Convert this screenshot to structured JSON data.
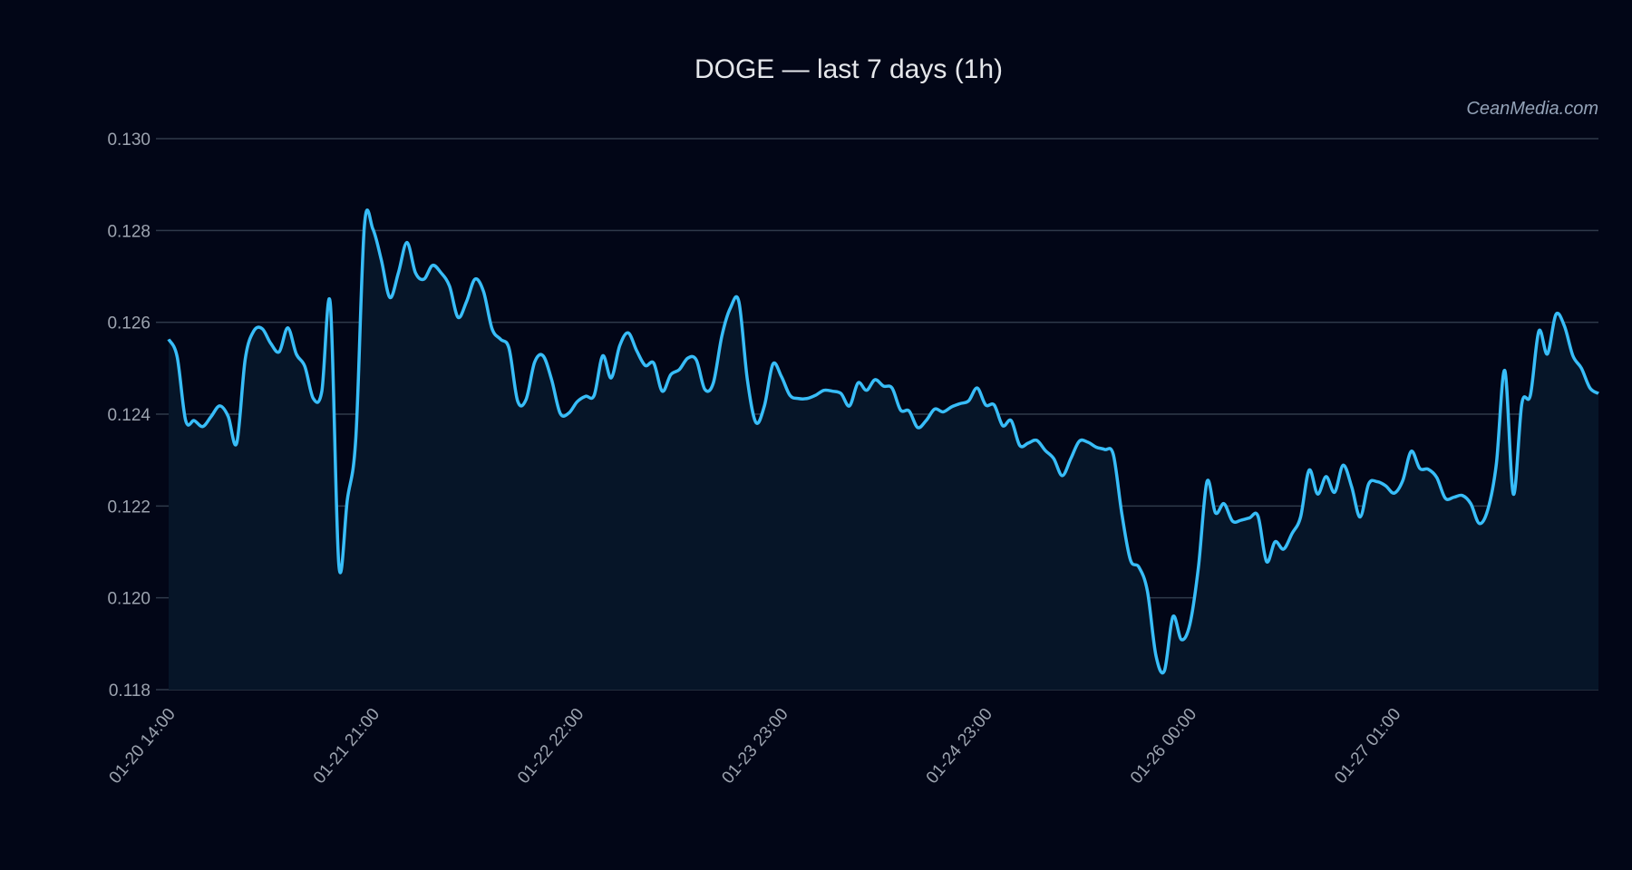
{
  "chart_data": {
    "type": "line",
    "title": "DOGE — last 7 days (1h)",
    "watermark": "CeanMedia.com",
    "xlabel": "",
    "ylabel": "",
    "ylim": [
      0.118,
      0.13
    ],
    "yticks": [
      "0.118",
      "0.120",
      "0.122",
      "0.124",
      "0.126",
      "0.128",
      "0.130"
    ],
    "ytick_values": [
      0.118,
      0.12,
      0.122,
      0.124,
      0.126,
      0.128,
      0.13
    ],
    "xticks": [
      {
        "index": 0,
        "label": "01-20 14:00"
      },
      {
        "index": 24,
        "label": "01-21 21:00"
      },
      {
        "index": 48,
        "label": "01-22 22:00"
      },
      {
        "index": 72,
        "label": "01-23 23:00"
      },
      {
        "index": 96,
        "label": "01-24 23:00"
      },
      {
        "index": 120,
        "label": "01-26 00:00"
      },
      {
        "index": 144,
        "label": "01-27 01:00"
      }
    ],
    "grid": true,
    "colors": {
      "line": "#38bdf8",
      "fill": "#061528",
      "background": "#020617",
      "grid": "#2f3a4a"
    },
    "series": [
      {
        "values": [
          0.12563,
          0.12525,
          0.12386,
          0.12386,
          0.12373,
          0.12395,
          0.12418,
          0.12395,
          0.12337,
          0.1252,
          0.12581,
          0.12586,
          0.12554,
          0.12536,
          0.12588,
          0.12531,
          0.12504,
          0.12434,
          0.1245,
          0.1264,
          0.12072,
          0.12214,
          0.1235,
          0.1281,
          0.12803,
          0.12735,
          0.12654,
          0.12708,
          0.12774,
          0.12708,
          0.12694,
          0.12724,
          0.12708,
          0.12679,
          0.12611,
          0.12645,
          0.12694,
          0.12667,
          0.12586,
          0.12563,
          0.12543,
          0.12429,
          0.12432,
          0.12513,
          0.12527,
          0.12475,
          0.12402,
          0.12402,
          0.12427,
          0.12439,
          0.12441,
          0.12527,
          0.12479,
          0.12549,
          0.12577,
          0.12538,
          0.12506,
          0.12511,
          0.1245,
          0.12486,
          0.12497,
          0.12522,
          0.12518,
          0.12454,
          0.12468,
          0.1257,
          0.12631,
          0.12645,
          0.12475,
          0.12382,
          0.12418,
          0.12509,
          0.12482,
          0.12441,
          0.12434,
          0.12434,
          0.12441,
          0.12452,
          0.1245,
          0.12445,
          0.12418,
          0.12468,
          0.12452,
          0.12475,
          0.12461,
          0.12457,
          0.12409,
          0.12407,
          0.12371,
          0.12386,
          0.12411,
          0.12405,
          0.12416,
          0.12423,
          0.12429,
          0.12457,
          0.1242,
          0.1242,
          0.12375,
          0.12386,
          0.12332,
          0.12337,
          0.12343,
          0.12321,
          0.12303,
          0.12266,
          0.12303,
          0.12341,
          0.12339,
          0.12328,
          0.12323,
          0.12312,
          0.12183,
          0.12083,
          0.12067,
          0.12015,
          0.11875,
          0.11841,
          0.11959,
          0.11909,
          0.11943,
          0.12067,
          0.12253,
          0.12185,
          0.12205,
          0.12167,
          0.12169,
          0.12174,
          0.12178,
          0.12079,
          0.12122,
          0.12106,
          0.1214,
          0.12176,
          0.12278,
          0.12226,
          0.12264,
          0.1223,
          0.12289,
          0.12242,
          0.12176,
          0.12248,
          0.12253,
          0.12244,
          0.12228,
          0.12255,
          0.12319,
          0.12282,
          0.1228,
          0.12262,
          0.12217,
          0.12219,
          0.12223,
          0.12205,
          0.12162,
          0.12192,
          0.12291,
          0.12495,
          0.12226,
          0.12423,
          0.12441,
          0.12581,
          0.12531,
          0.12617,
          0.12592,
          0.12527,
          0.125,
          0.12457,
          0.12445
        ]
      }
    ]
  }
}
